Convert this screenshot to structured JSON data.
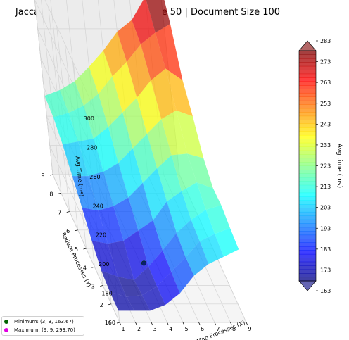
{
  "title": "Jaccard Similarity: Collection Size 50 | Document Size 100",
  "chart_data": {
    "type": "surface3d",
    "title": "Jaccard Similarity: Collection Size 50 | Document Size 100",
    "xlabel": "Map Processes (X)",
    "ylabel": "Reduce Processes (Y)",
    "zlabel": "Avg Time (ms)",
    "x": [
      1,
      2,
      3,
      4,
      5,
      6,
      7,
      8,
      9
    ],
    "y": [
      1,
      2,
      3,
      4,
      5,
      6,
      7,
      8,
      9
    ],
    "z": [
      [
        168,
        168,
        168,
        172,
        180,
        192,
        200,
        205,
        210
      ],
      [
        168,
        165,
        166,
        172,
        182,
        192,
        203,
        208,
        212
      ],
      [
        170,
        166,
        163.67,
        173,
        184,
        196,
        205,
        212,
        215
      ],
      [
        178,
        176,
        178,
        185,
        192,
        205,
        212,
        218,
        214
      ],
      [
        188,
        186,
        189,
        195,
        205,
        215,
        224,
        225,
        222
      ],
      [
        197,
        197,
        200,
        206,
        216,
        226,
        236,
        242,
        238
      ],
      [
        206,
        208,
        210,
        218,
        228,
        238,
        250,
        258,
        250
      ],
      [
        212,
        215,
        220,
        228,
        240,
        250,
        262,
        270,
        276
      ],
      [
        214,
        218,
        224,
        234,
        245,
        258,
        266,
        282,
        293.7
      ]
    ],
    "z_ticks": [
      160,
      180,
      200,
      220,
      240,
      260,
      280,
      300
    ],
    "zlim": [
      160,
      300
    ],
    "colorbar": {
      "label": "Avg time (ms)",
      "ticks": [
        163,
        173,
        183,
        193,
        203,
        213,
        223,
        233,
        243,
        253,
        263,
        273,
        283
      ],
      "range": [
        163,
        283
      ],
      "colormap": "jet"
    },
    "markers": {
      "minimum": {
        "x": 3,
        "y": 3,
        "z": 163.67,
        "label": "Minimum: (3, 3, 163.67)",
        "color": "#006400"
      },
      "maximum": {
        "x": 9,
        "y": 9,
        "z": 293.7,
        "label": "Maximum: (9, 9, 293.70)",
        "color": "#e100e1"
      }
    },
    "legend_placement": "bottom-left",
    "grid": true
  }
}
